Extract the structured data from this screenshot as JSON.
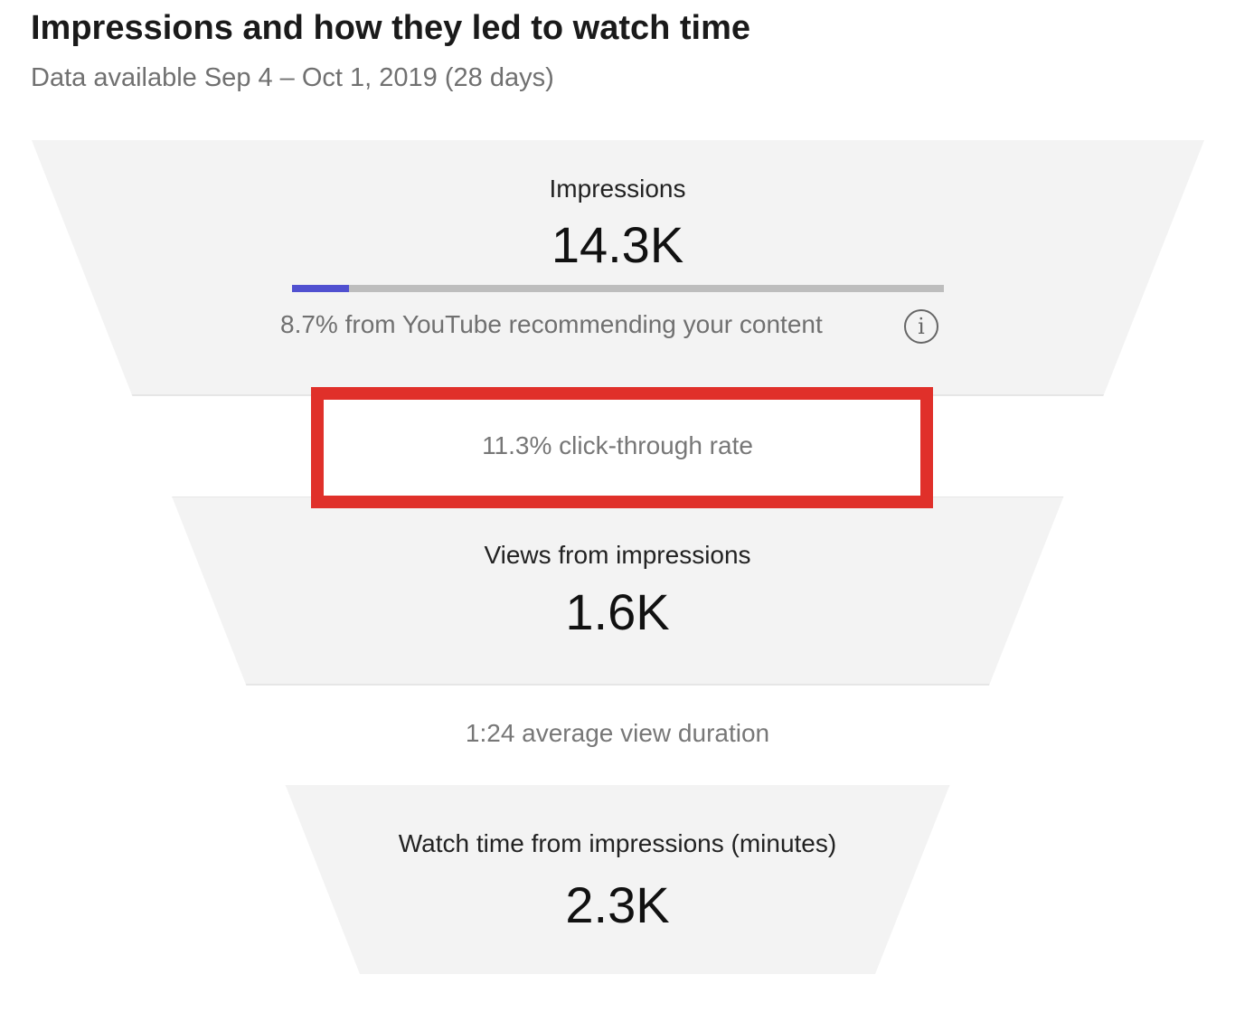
{
  "header": {
    "title": "Impressions and how they led to watch time",
    "subtitle": "Data available Sep 4 – Oct 1, 2019 (28 days)"
  },
  "funnel": {
    "impressions": {
      "label": "Impressions",
      "value": "14.3K",
      "recommended_text": "8.7% from YouTube recommending your content",
      "recommended_percent": 8.7,
      "info_icon": "info-icon"
    },
    "ctr": {
      "text": "11.3% click-through rate",
      "highlighted": true,
      "highlight_color": "#e0302a"
    },
    "views": {
      "label": "Views from impressions",
      "value": "1.6K"
    },
    "avd": {
      "text": "1:24 average view duration"
    },
    "watch_time": {
      "label": "Watch time from impressions (minutes)",
      "value": "2.3K"
    }
  },
  "colors": {
    "bar_fill": "#5050d0",
    "bar_track": "#bdbdbd",
    "band": "#f3f3f3"
  }
}
